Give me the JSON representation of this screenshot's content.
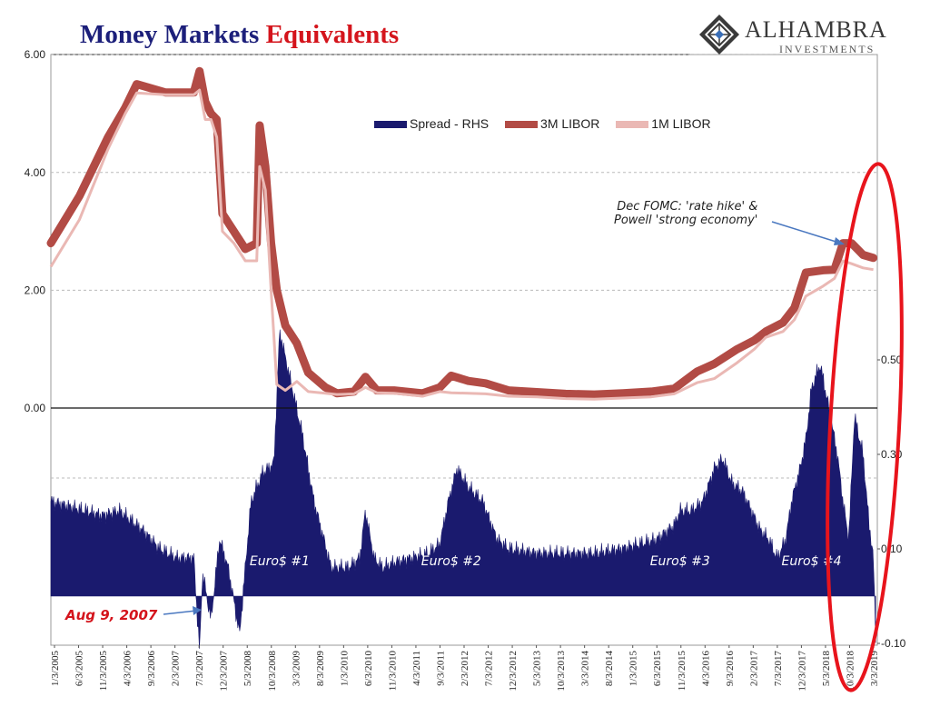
{
  "title": {
    "part1": "Money Markets",
    "part2": "Equivalents"
  },
  "logo": {
    "name": "ALHAMBRA",
    "sub": "INVESTMENTS"
  },
  "colors": {
    "spread": "#1a1a6e",
    "libor3m": "#b24b45",
    "libor1m": "#eab8b4",
    "title_blue": "#1c1f7a",
    "title_red": "#d4141c",
    "ellipse": "#e8141c"
  },
  "annotations": {
    "fomc_line1": "Dec FOMC: 'rate hike' &",
    "fomc_line2": "Powell 'strong economy'",
    "aug9": "Aug 9, 2007"
  },
  "chart_data": {
    "type": "line",
    "title": "Money Markets Equivalents",
    "legend": "top-center",
    "grid": true,
    "x_tick_labels": [
      "1/3/2005",
      "6/3/2005",
      "11/3/2005",
      "4/3/2006",
      "9/3/2006",
      "2/3/2007",
      "7/3/2007",
      "12/3/2007",
      "5/3/2008",
      "10/3/2008",
      "3/3/2009",
      "8/3/2009",
      "1/3/2010",
      "6/3/2010",
      "11/3/2010",
      "4/3/2011",
      "9/3/2011",
      "2/3/2012",
      "7/3/2012",
      "12/3/2012",
      "5/3/2013",
      "10/3/2013",
      "3/3/2014",
      "8/3/2014",
      "1/3/2015",
      "6/3/2015",
      "11/3/2015",
      "4/3/2016",
      "9/3/2016",
      "2/3/2017",
      "7/3/2017",
      "12/3/2017",
      "5/3/2018",
      "10/3/2018",
      "3/3/2019"
    ],
    "y_left": {
      "range": [
        0,
        6
      ],
      "ticks": [
        "0.00",
        "2.00",
        "4.00",
        "6.00"
      ]
    },
    "y_right": {
      "ticks": [
        "-0.10",
        "0.10",
        "0.30",
        "0.50"
      ],
      "values": [
        -0.1,
        0.1,
        0.3,
        0.5
      ]
    },
    "region_labels": [
      {
        "text": "Euro$ #1",
        "x": 2009.0
      },
      {
        "text": "Euro$ #2",
        "x": 2012.0
      },
      {
        "text": "Euro$ #3",
        "x": 2016.0
      },
      {
        "text": "Euro$ #4",
        "x": 2018.3
      }
    ],
    "series": [
      {
        "name": "Spread - RHS",
        "axis": "right",
        "style": "area",
        "x": [
          2005.0,
          2005.3,
          2005.6,
          2005.9,
          2006.2,
          2006.6,
          2006.9,
          2007.2,
          2007.5,
          2007.6,
          2007.65,
          2007.8,
          2007.95,
          2008.1,
          2008.3,
          2008.5,
          2008.7,
          2008.8,
          2008.9,
          2009.0,
          2009.2,
          2009.4,
          2009.6,
          2009.9,
          2010.2,
          2010.4,
          2010.5,
          2010.65,
          2010.8,
          2011.0,
          2011.3,
          2011.6,
          2011.8,
          2011.95,
          2012.1,
          2012.3,
          2012.55,
          2012.8,
          2013.0,
          2013.5,
          2014.0,
          2014.5,
          2015.0,
          2015.3,
          2015.6,
          2015.9,
          2016.0,
          2016.2,
          2016.4,
          2016.6,
          2016.75,
          2016.9,
          2017.1,
          2017.25,
          2017.4,
          2017.55,
          2017.7,
          2017.85,
          2017.95,
          2018.1,
          2018.2,
          2018.3,
          2018.45,
          2018.6,
          2018.75,
          2018.85,
          2018.95,
          2019.05,
          2019.2,
          2019.3,
          2019.38,
          2019.42
        ],
        "values": [
          0.2,
          0.19,
          0.18,
          0.17,
          0.18,
          0.14,
          0.1,
          0.08,
          0.08,
          -0.12,
          0.05,
          -0.05,
          0.12,
          0.06,
          -0.08,
          0.2,
          0.26,
          0.27,
          0.28,
          0.56,
          0.45,
          0.34,
          0.2,
          0.06,
          0.06,
          0.08,
          0.18,
          0.08,
          0.06,
          0.07,
          0.08,
          0.09,
          0.11,
          0.2,
          0.27,
          0.23,
          0.2,
          0.12,
          0.1,
          0.09,
          0.09,
          0.09,
          0.1,
          0.11,
          0.12,
          0.15,
          0.18,
          0.18,
          0.2,
          0.27,
          0.29,
          0.24,
          0.22,
          0.18,
          0.14,
          0.12,
          0.08,
          0.12,
          0.2,
          0.27,
          0.33,
          0.44,
          0.49,
          0.4,
          0.3,
          0.2,
          0.12,
          0.38,
          0.3,
          0.16,
          0.08,
          -0.08
        ]
      },
      {
        "name": "3M LIBOR",
        "axis": "left",
        "style": "line",
        "x": [
          2005.0,
          2005.5,
          2006.0,
          2006.3,
          2006.5,
          2007.0,
          2007.5,
          2007.6,
          2007.7,
          2007.8,
          2007.9,
          2008.0,
          2008.2,
          2008.4,
          2008.6,
          2008.65,
          2008.75,
          2008.85,
          2008.95,
          2009.1,
          2009.3,
          2009.5,
          2009.8,
          2010.0,
          2010.3,
          2010.5,
          2010.7,
          2011.0,
          2011.5,
          2011.8,
          2012.0,
          2012.3,
          2012.6,
          2013.0,
          2013.5,
          2014.0,
          2014.5,
          2015.0,
          2015.5,
          2015.9,
          2016.3,
          2016.6,
          2017.0,
          2017.3,
          2017.5,
          2017.8,
          2018.0,
          2018.2,
          2018.5,
          2018.7,
          2018.85,
          2019.0,
          2019.2,
          2019.38
        ],
        "values": [
          2.8,
          3.6,
          4.6,
          5.1,
          5.5,
          5.36,
          5.36,
          5.72,
          5.2,
          5.0,
          4.9,
          3.3,
          3.0,
          2.7,
          2.8,
          4.8,
          4.1,
          2.8,
          2.0,
          1.4,
          1.1,
          0.6,
          0.35,
          0.25,
          0.28,
          0.53,
          0.3,
          0.3,
          0.25,
          0.35,
          0.55,
          0.46,
          0.42,
          0.3,
          0.27,
          0.24,
          0.23,
          0.25,
          0.28,
          0.33,
          0.62,
          0.75,
          1.0,
          1.15,
          1.3,
          1.45,
          1.7,
          2.3,
          2.34,
          2.35,
          2.8,
          2.8,
          2.6,
          2.55
        ]
      },
      {
        "name": "1M LIBOR",
        "axis": "left",
        "style": "line",
        "x": [
          2005.0,
          2005.5,
          2006.0,
          2006.3,
          2006.5,
          2007.0,
          2007.5,
          2007.6,
          2007.7,
          2007.8,
          2007.9,
          2008.0,
          2008.2,
          2008.4,
          2008.6,
          2008.65,
          2008.75,
          2008.85,
          2008.95,
          2009.1,
          2009.3,
          2009.5,
          2009.8,
          2010.0,
          2010.3,
          2010.5,
          2010.7,
          2011.0,
          2011.5,
          2011.8,
          2012.0,
          2012.3,
          2012.6,
          2013.0,
          2013.5,
          2014.0,
          2014.5,
          2015.0,
          2015.5,
          2015.9,
          2016.3,
          2016.6,
          2017.0,
          2017.3,
          2017.5,
          2017.8,
          2018.0,
          2018.2,
          2018.5,
          2018.7,
          2018.85,
          2019.0,
          2019.2,
          2019.38
        ],
        "values": [
          2.4,
          3.2,
          4.4,
          5.0,
          5.35,
          5.32,
          5.32,
          5.4,
          4.9,
          4.9,
          4.6,
          3.0,
          2.8,
          2.5,
          2.5,
          4.1,
          3.7,
          2.0,
          0.4,
          0.3,
          0.45,
          0.28,
          0.25,
          0.23,
          0.24,
          0.35,
          0.26,
          0.25,
          0.2,
          0.28,
          0.26,
          0.25,
          0.24,
          0.2,
          0.19,
          0.16,
          0.15,
          0.17,
          0.19,
          0.24,
          0.43,
          0.5,
          0.77,
          1.0,
          1.2,
          1.3,
          1.5,
          1.9,
          2.07,
          2.2,
          2.5,
          2.45,
          2.38,
          2.35
        ]
      }
    ]
  }
}
